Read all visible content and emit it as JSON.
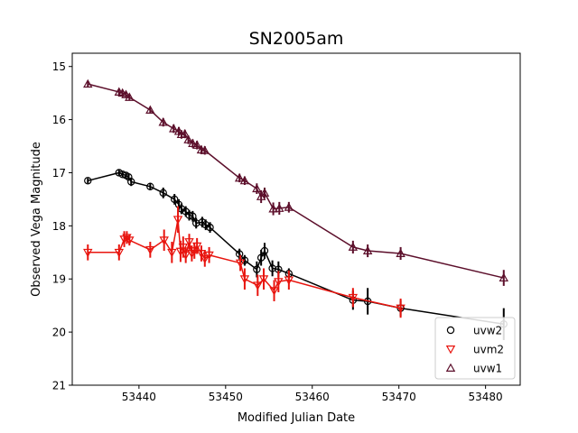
{
  "chart_data": {
    "type": "scatter",
    "title": "SN2005am",
    "xlabel": "Modified Julian Date",
    "ylabel": "Observed Vega Magnitude",
    "xlim": [
      53432.3,
      53484.0
    ],
    "ylim": [
      21,
      14.75
    ],
    "y_inverted": true,
    "x_ticks": [
      53440,
      53450,
      53460,
      53470,
      53480
    ],
    "y_ticks": [
      15,
      16,
      17,
      18,
      19,
      20,
      21
    ],
    "grid": false,
    "legend_position": "lower-right",
    "series": [
      {
        "name": "uvw2",
        "color": "#000000",
        "marker": "circle",
        "x": [
          53434.1,
          53437.7,
          53438.1,
          53438.5,
          53438.8,
          53439.1,
          53441.3,
          53442.8,
          53444.1,
          53444.6,
          53444.9,
          53445.4,
          53445.8,
          53446.2,
          53446.6,
          53447.3,
          53447.7,
          53448.2,
          53451.6,
          53452.2,
          53453.6,
          53454.1,
          53454.5,
          53455.4,
          53456.1,
          53457.3,
          53464.7,
          53466.4,
          53470.2,
          53482.1
        ],
        "y": [
          17.15,
          17.0,
          17.03,
          17.05,
          17.08,
          17.17,
          17.26,
          17.38,
          17.5,
          17.6,
          17.68,
          17.73,
          17.8,
          17.82,
          17.95,
          17.93,
          17.98,
          18.03,
          18.53,
          18.65,
          18.82,
          18.6,
          18.47,
          18.8,
          18.82,
          18.9,
          19.4,
          19.42,
          19.55,
          19.85
        ],
        "err": [
          0.05,
          0.05,
          0.05,
          0.05,
          0.05,
          0.08,
          0.07,
          0.1,
          0.1,
          0.1,
          0.1,
          0.1,
          0.1,
          0.1,
          0.1,
          0.1,
          0.1,
          0.1,
          0.1,
          0.1,
          0.15,
          0.15,
          0.15,
          0.15,
          0.15,
          0.1,
          0.18,
          0.25,
          0.15,
          0.3
        ]
      },
      {
        "name": "uvm2",
        "color": "#e8140e",
        "marker": "triangle-down",
        "x": [
          53434.1,
          53437.7,
          53438.3,
          53438.6,
          53438.9,
          53441.3,
          53442.9,
          53443.8,
          53444.5,
          53444.8,
          53445.1,
          53445.4,
          53445.8,
          53446.1,
          53446.4,
          53446.7,
          53447.2,
          53447.6,
          53448.1,
          53451.7,
          53452.2,
          53453.7,
          53454.4,
          53455.6,
          53456.1,
          53457.3,
          53464.7,
          53470.2
        ],
        "y": [
          18.5,
          18.5,
          18.25,
          18.22,
          18.27,
          18.45,
          18.27,
          18.5,
          17.88,
          18.48,
          18.4,
          18.55,
          18.3,
          18.52,
          18.47,
          18.38,
          18.52,
          18.62,
          18.55,
          18.7,
          19.0,
          19.12,
          19.0,
          19.22,
          19.05,
          19.02,
          19.35,
          19.55
        ],
        "err": [
          0.15,
          0.15,
          0.15,
          0.12,
          0.1,
          0.15,
          0.2,
          0.2,
          0.25,
          0.2,
          0.2,
          0.15,
          0.15,
          0.15,
          0.15,
          0.15,
          0.15,
          0.15,
          0.15,
          0.15,
          0.2,
          0.2,
          0.2,
          0.2,
          0.2,
          0.18,
          0.18,
          0.18
        ]
      },
      {
        "name": "uvw1",
        "color": "#5c0f2b",
        "marker": "triangle-up",
        "x": [
          53434.1,
          53437.7,
          53438.1,
          53438.5,
          53438.9,
          53441.3,
          53442.8,
          53444.0,
          53444.6,
          53444.9,
          53445.3,
          53445.7,
          53446.2,
          53446.7,
          53447.2,
          53447.6,
          53451.6,
          53452.2,
          53453.6,
          53454.1,
          53454.5,
          53455.5,
          53456.2,
          53457.3,
          53464.7,
          53466.4,
          53470.2,
          53482.1
        ],
        "y": [
          15.33,
          15.48,
          15.5,
          15.53,
          15.58,
          15.82,
          16.05,
          16.17,
          16.22,
          16.28,
          16.27,
          16.38,
          16.45,
          16.48,
          16.57,
          16.58,
          17.1,
          17.15,
          17.3,
          17.45,
          17.38,
          17.68,
          17.67,
          17.65,
          18.4,
          18.47,
          18.52,
          18.98
        ],
        "err": [
          0.05,
          0.05,
          0.05,
          0.05,
          0.05,
          0.05,
          0.08,
          0.08,
          0.08,
          0.08,
          0.08,
          0.08,
          0.08,
          0.08,
          0.08,
          0.08,
          0.08,
          0.08,
          0.1,
          0.12,
          0.1,
          0.12,
          0.12,
          0.1,
          0.12,
          0.12,
          0.12,
          0.15
        ]
      }
    ]
  }
}
